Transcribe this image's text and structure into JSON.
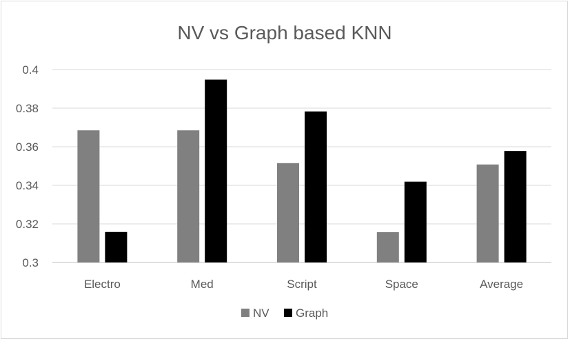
{
  "chart_data": {
    "type": "bar",
    "title": "NV vs Graph based KNN",
    "categories": [
      "Electro",
      "Med",
      "Script",
      "Space",
      "Average"
    ],
    "series": [
      {
        "name": "NV",
        "values": [
          0.3685,
          0.3685,
          0.3515,
          0.3157,
          0.3508
        ],
        "color": "#808080"
      },
      {
        "name": "Graph",
        "values": [
          0.3158,
          0.3948,
          0.3783,
          0.3419,
          0.3578
        ],
        "color": "#000000"
      }
    ],
    "ylim": [
      0.3,
      0.4
    ],
    "yticks": [
      0.3,
      0.32,
      0.34,
      0.36,
      0.38,
      0.4
    ],
    "ytick_labels": [
      "0.3",
      "0.32",
      "0.34",
      "0.36",
      "0.38",
      "0.4"
    ],
    "xlabel": "",
    "ylabel": "",
    "grid": true,
    "legend_position": "bottom"
  }
}
